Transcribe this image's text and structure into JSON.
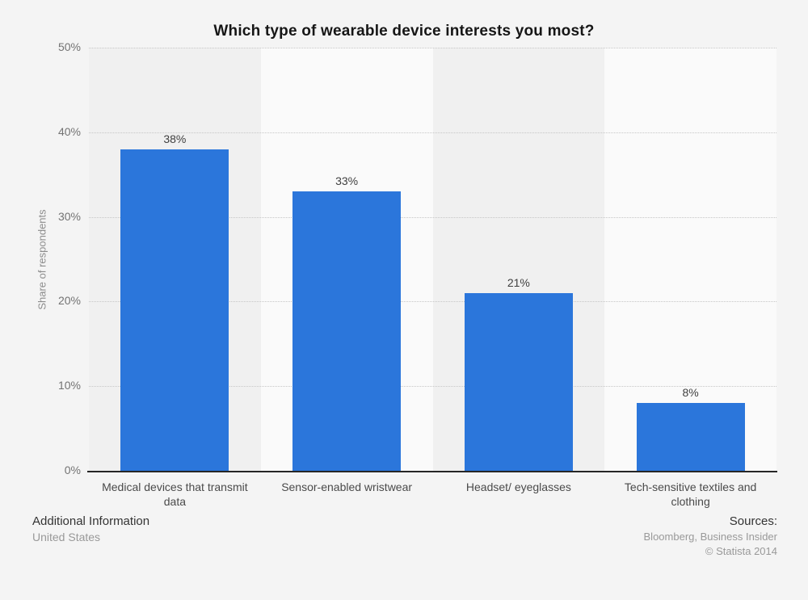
{
  "chart_data": {
    "type": "bar",
    "title": "Which type of wearable device interests you most?",
    "categories": [
      "Medical devices that transmit data",
      "Sensor-enabled wristwear",
      "Headset/ eyeglasses",
      "Tech-sensitive textiles and clothing"
    ],
    "values": [
      38,
      33,
      21,
      8
    ],
    "value_labels": [
      "38%",
      "33%",
      "21%",
      "8%"
    ],
    "xlabel": "",
    "ylabel": "Share of respondents",
    "ylim": [
      0,
      50
    ],
    "yticks": [
      0,
      10,
      20,
      30,
      40,
      50
    ],
    "ytick_suffix": "%",
    "grid": "horizontal-dotted",
    "legend": "none",
    "bar_color": "#2b76db",
    "band_colors": [
      "#f0f0f0",
      "#fafafa"
    ],
    "gridline_color": "#c6c6c6",
    "axis_line_color": "#262626"
  },
  "footer": {
    "additional_info_label": "Additional Information",
    "additional_info_value": "United States",
    "sources_label": "Sources:",
    "sources_value": "Bloomberg, Business Insider",
    "copyright": "© Statista 2014"
  }
}
